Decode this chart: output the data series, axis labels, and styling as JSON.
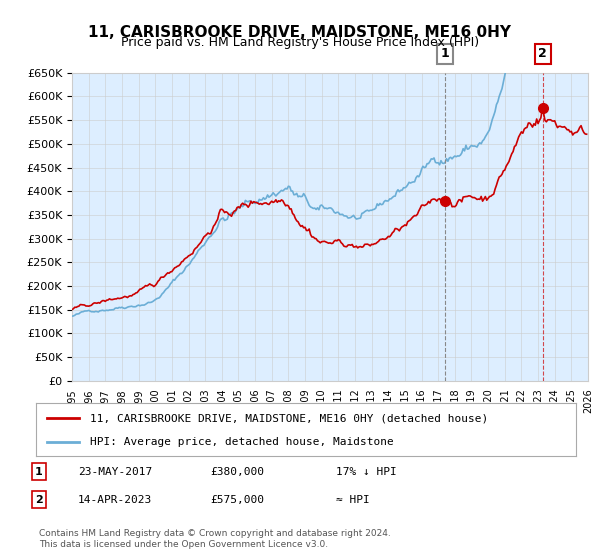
{
  "title": "11, CARISBROOKE DRIVE, MAIDSTONE, ME16 0HY",
  "subtitle": "Price paid vs. HM Land Registry's House Price Index (HPI)",
  "title_fontsize": 12,
  "subtitle_fontsize": 10,
  "hpi_color": "#6baed6",
  "price_color": "#cc0000",
  "background_color": "#ddeeff",
  "plot_bg": "#ddeeff",
  "grid_color": "#ffffff",
  "ylim": [
    0,
    650000
  ],
  "yticks": [
    0,
    50000,
    100000,
    150000,
    200000,
    250000,
    300000,
    350000,
    400000,
    450000,
    500000,
    550000,
    600000,
    650000
  ],
  "xlim_start": 1995.0,
  "xlim_end": 2026.0,
  "xticks": [
    1995,
    1996,
    1997,
    1998,
    1999,
    2000,
    2001,
    2002,
    2003,
    2004,
    2005,
    2006,
    2007,
    2008,
    2009,
    2010,
    2011,
    2012,
    2013,
    2014,
    2015,
    2016,
    2017,
    2018,
    2019,
    2020,
    2021,
    2022,
    2023,
    2024,
    2025,
    2026
  ],
  "marker1_x": 2017.388,
  "marker1_y": 380000,
  "marker2_x": 2023.28,
  "marker2_y": 575000,
  "vline1_x": 2017.388,
  "vline2_x": 2023.28,
  "legend_label_red": "11, CARISBROOKE DRIVE, MAIDSTONE, ME16 0HY (detached house)",
  "legend_label_blue": "HPI: Average price, detached house, Maidstone",
  "annotation1_label": "1",
  "annotation2_label": "2",
  "table_row1": [
    "1",
    "23-MAY-2017",
    "£380,000",
    "17% ↓ HPI"
  ],
  "table_row2": [
    "2",
    "14-APR-2023",
    "£575,000",
    "≈ HPI"
  ],
  "footer": "Contains HM Land Registry data © Crown copyright and database right 2024.\nThis data is licensed under the Open Government Licence v3.0."
}
